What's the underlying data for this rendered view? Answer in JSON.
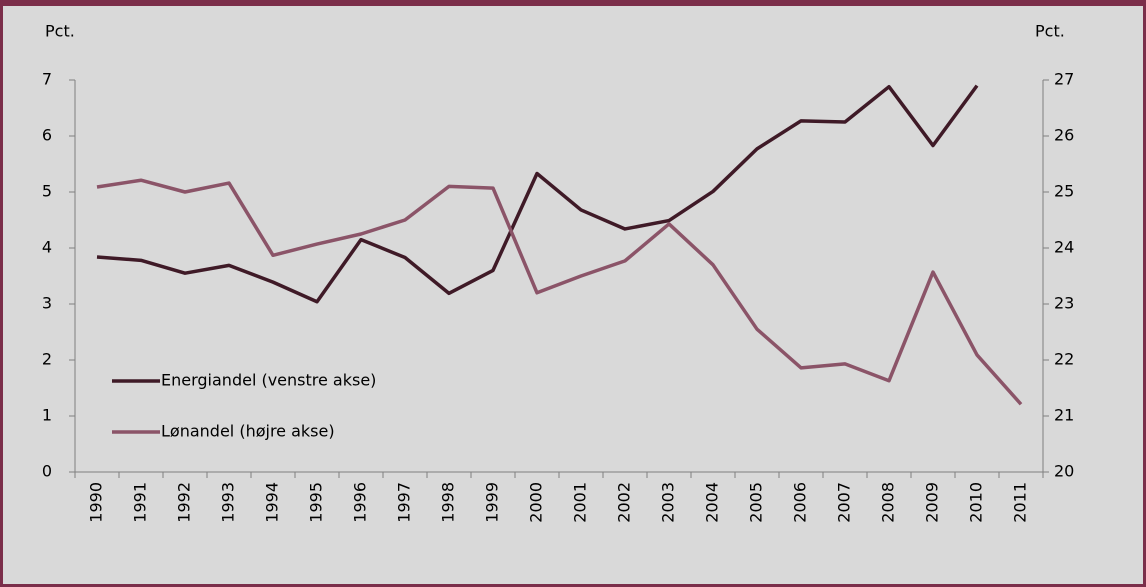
{
  "chart_data": {
    "type": "line",
    "y_label": "Pct.",
    "y2_label": "Pct.",
    "categories": [
      "1990",
      "1991",
      "1992",
      "1993",
      "1994",
      "1995",
      "1996",
      "1997",
      "1998",
      "1999",
      "2000",
      "2001",
      "2002",
      "2003",
      "2004",
      "2005",
      "2006",
      "2007",
      "2008",
      "2009",
      "2010",
      "2011"
    ],
    "series": [
      {
        "name": "Energiandel (venstre akse)",
        "color": "#3f1a27",
        "axis": "y",
        "values": [
          3.84,
          3.78,
          3.55,
          3.69,
          3.39,
          3.04,
          4.15,
          3.83,
          3.19,
          3.6,
          5.33,
          4.68,
          4.34,
          4.49,
          5.01,
          5.77,
          6.27,
          6.25,
          6.88,
          5.83,
          6.9,
          null
        ]
      },
      {
        "name": "Lønandel (højre akse)",
        "color": "#8b5468",
        "axis": "y2",
        "values": [
          25.09,
          25.21,
          25.0,
          25.16,
          23.87,
          24.07,
          24.25,
          24.5,
          25.1,
          25.07,
          23.2,
          23.5,
          23.77,
          24.43,
          23.7,
          22.55,
          21.86,
          21.93,
          21.63,
          23.57,
          22.09,
          21.21
        ]
      }
    ],
    "ylim": [
      0,
      7
    ],
    "yticks": [
      0,
      1,
      2,
      3,
      4,
      5,
      6,
      7
    ],
    "y2lim": [
      20,
      27
    ],
    "y2ticks": [
      20,
      21,
      22,
      23,
      24,
      25,
      26,
      27
    ],
    "legend": "lower left",
    "grid": false
  }
}
